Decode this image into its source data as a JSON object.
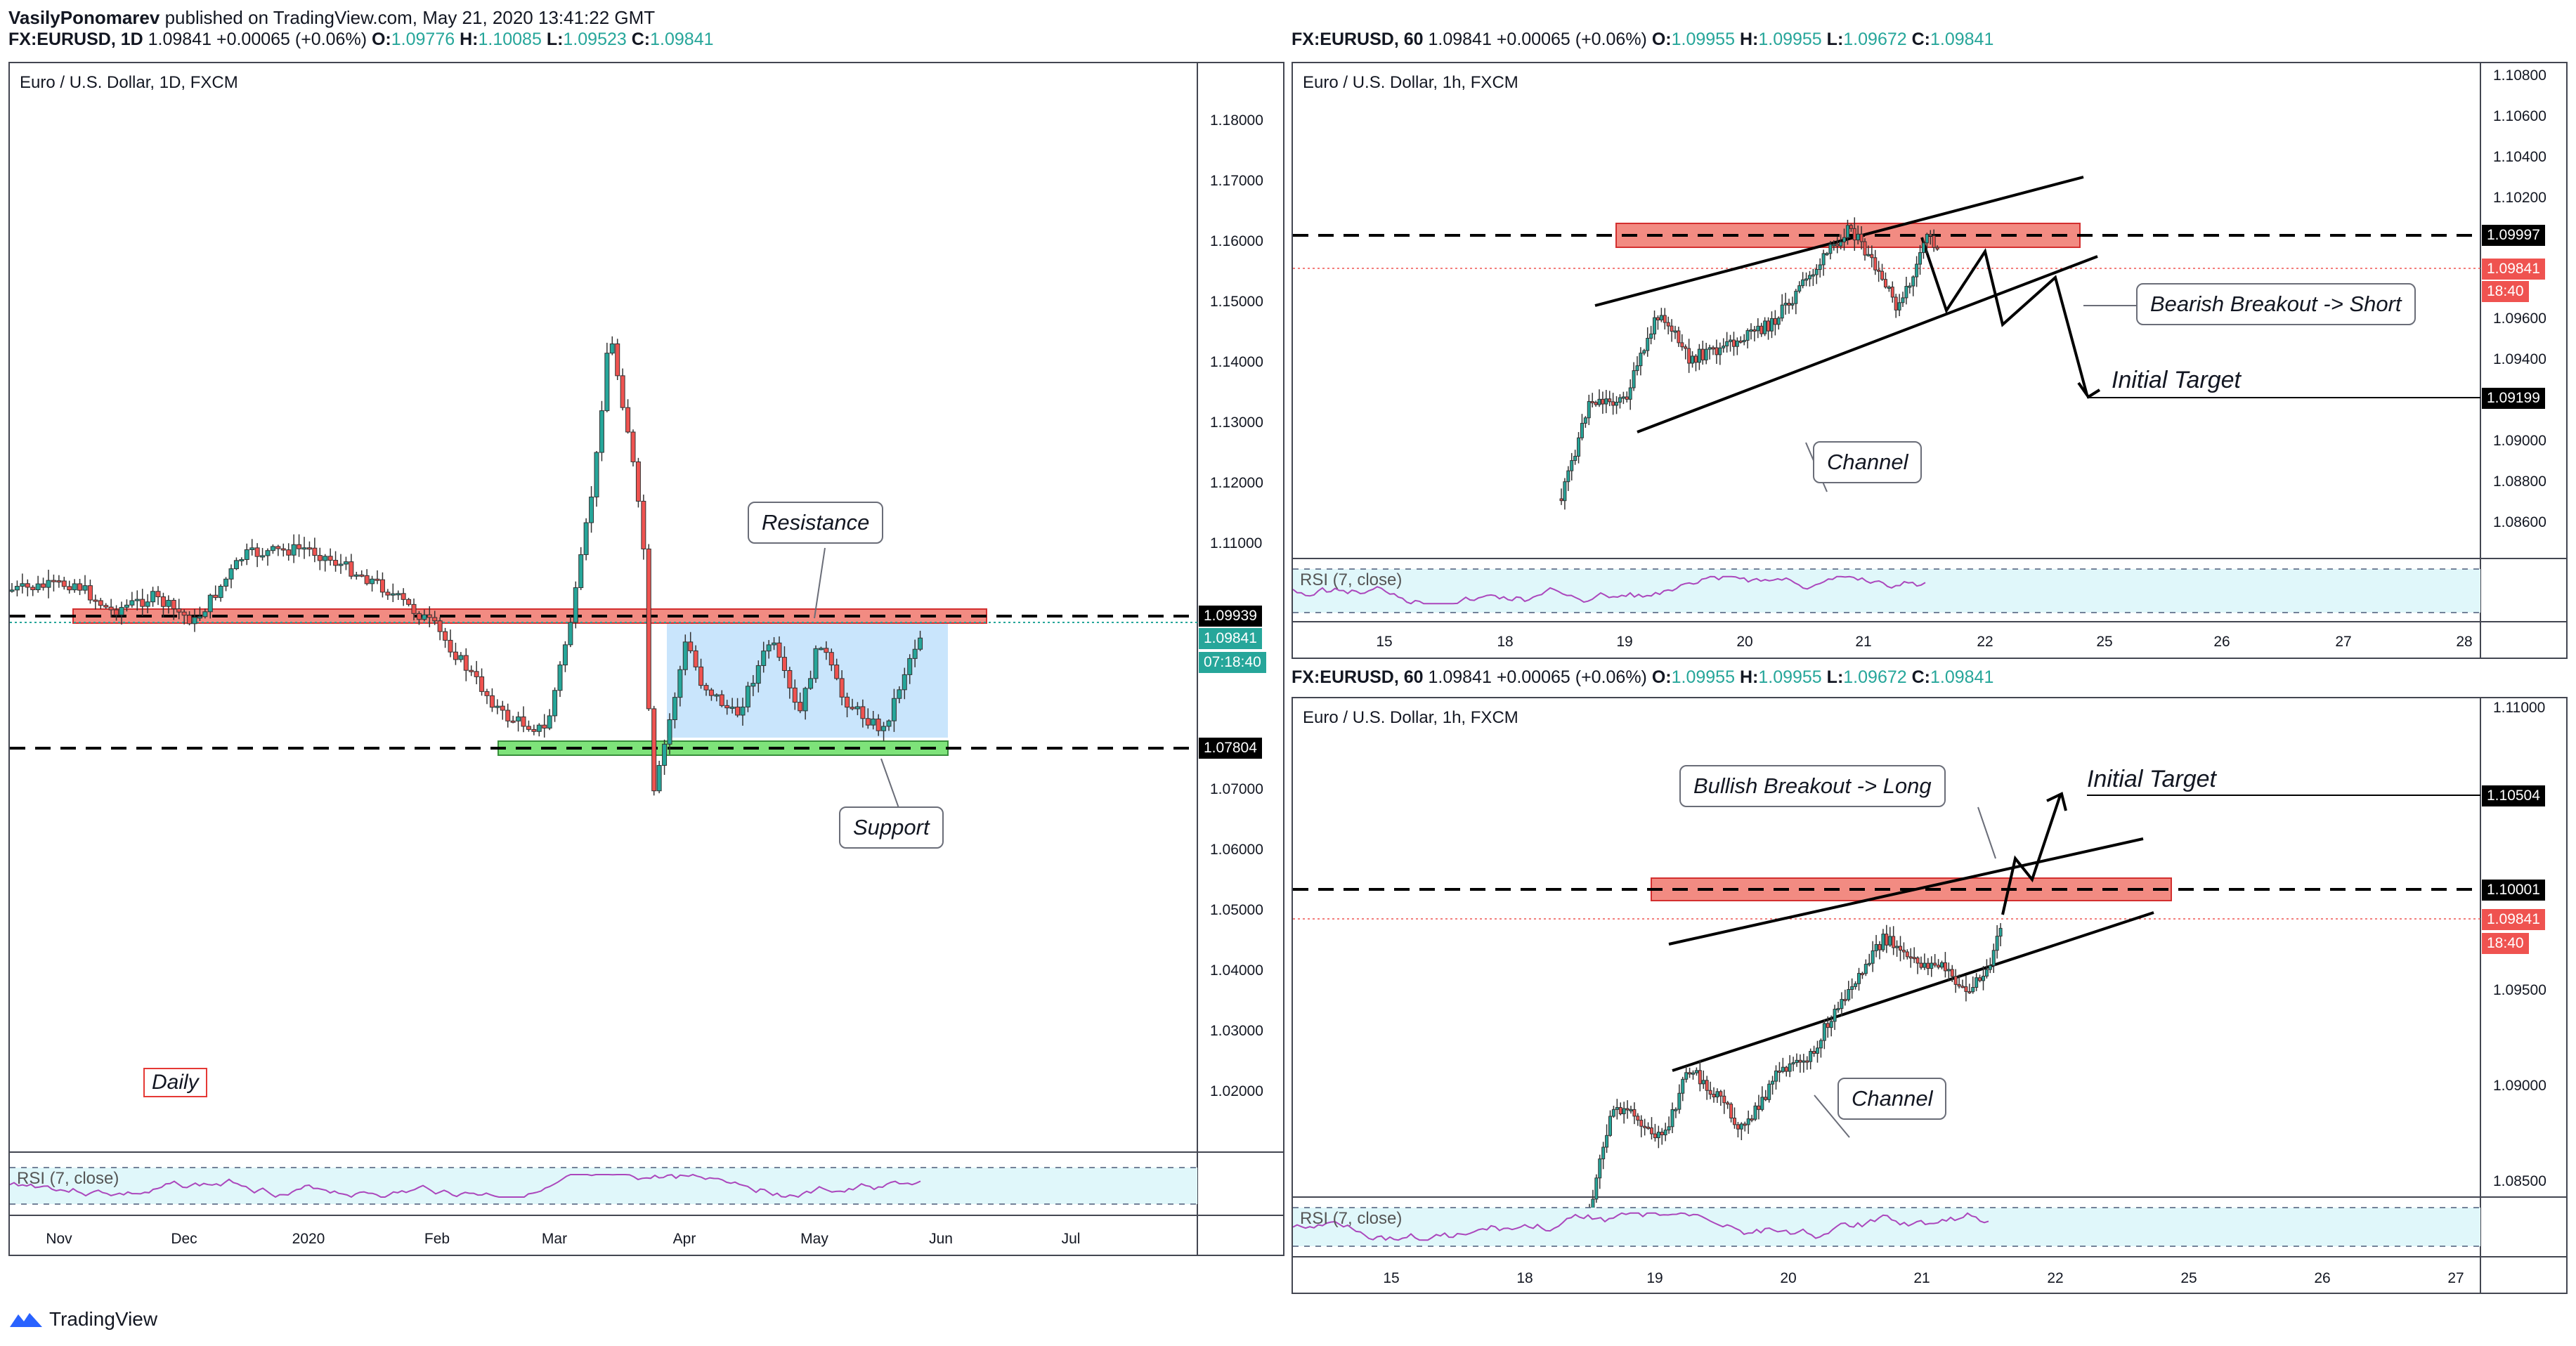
{
  "header": {
    "author": "VasilyPonomarev",
    "published": "published on TradingView.com, May 21, 2020 13:41:22 GMT",
    "symbol": "FX:EURUSD, 1D",
    "price": "1.09841",
    "change": "+0.00065 (+0.06%)",
    "o": "O:",
    "o_val": "1.09776",
    "h": "H:",
    "h_val": "1.10085",
    "l": "L:",
    "l_val": "1.09523",
    "c": "C:",
    "c_val": "1.09841"
  },
  "daily": {
    "title": "Euro / U.S. Dollar, 1D, FXCM",
    "price_ticks": [
      "1.18000",
      "1.17000",
      "1.16000",
      "1.15000",
      "1.14000",
      "1.13000",
      "1.12000",
      "1.11000",
      "1.09939",
      "1.09841",
      "07:18:40",
      "1.07804",
      "1.07000",
      "1.06000",
      "1.05000",
      "1.04000",
      "1.03000",
      "1.02000"
    ],
    "resistance_tag": "1.09939",
    "price_tag": "1.09841",
    "countdown": "07:18:40",
    "support_tag": "1.07804",
    "time_ticks": [
      "Nov",
      "Dec",
      "2020",
      "Feb",
      "Mar",
      "Apr",
      "May",
      "Jun",
      "Jul"
    ],
    "rsi_label": "RSI (7, close)",
    "callout_resistance": "Resistance",
    "callout_support": "Support",
    "timeframe_label": "Daily"
  },
  "hourly_top": {
    "header_symbol": "FX:EURUSD, 60",
    "header_price": "1.09841",
    "header_change": "+0.00065 (+0.06%)",
    "o": "O:",
    "o_val": "1.09955",
    "h": "H:",
    "h_val": "1.09955",
    "l": "L:",
    "l_val": "1.09672",
    "c": "C:",
    "c_val": "1.09841",
    "title": "Euro / U.S. Dollar, 1h, FXCM",
    "price_ticks": [
      "1.10800",
      "1.10600",
      "1.10400",
      "1.10200",
      "1.09600",
      "1.09400",
      "1.09000",
      "1.08800",
      "1.08600"
    ],
    "level_tag": "1.09997",
    "price_tag": "1.09841",
    "countdown": "18:40",
    "target_tag": "1.09199",
    "time_ticks": [
      "15",
      "18",
      "19",
      "20",
      "21",
      "22",
      "25",
      "26",
      "27",
      "28"
    ],
    "rsi_label": "RSI (7, close)",
    "callout_breakout": "Bearish Breakout -> Short",
    "callout_channel": "Channel",
    "target_label": "Initial Target"
  },
  "hourly_bottom": {
    "header_symbol": "FX:EURUSD, 60",
    "header_price": "1.09841",
    "header_change": "+0.00065 (+0.06%)",
    "o": "O:",
    "o_val": "1.09955",
    "h": "H:",
    "h_val": "1.09955",
    "l": "L:",
    "l_val": "1.09672",
    "c": "C:",
    "c_val": "1.09841",
    "title": "Euro / U.S. Dollar, 1h, FXCM",
    "price_ticks": [
      "1.11000",
      "1.09500",
      "1.09000",
      "1.08500"
    ],
    "target_tag": "1.10504",
    "level_tag": "1.10001",
    "price_tag": "1.09841",
    "countdown": "18:40",
    "time_ticks": [
      "15",
      "18",
      "19",
      "20",
      "21",
      "22",
      "25",
      "26",
      "27"
    ],
    "rsi_label": "RSI (7, close)",
    "callout_breakout": "Bullish Breakout -> Long",
    "callout_channel": "Channel",
    "target_label": "Initial Target"
  },
  "footer": {
    "brand": "TradingView"
  },
  "colors": {
    "up": "#26a69a",
    "down": "#ef5350",
    "resistance": "#f28b82",
    "support": "#7ee37a",
    "range": "#bbdefb",
    "rsi_band": "#e0f7fa"
  }
}
